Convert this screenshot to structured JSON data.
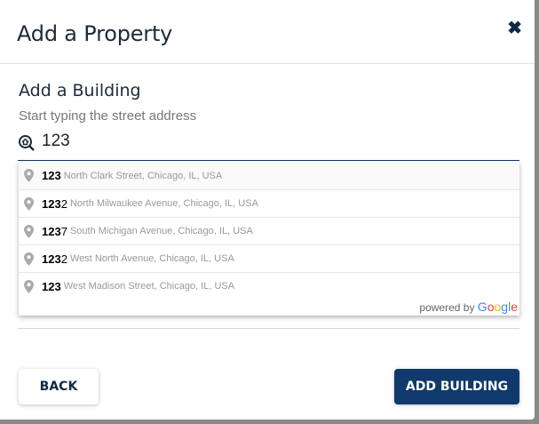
{
  "dialog": {
    "title": "Add a Property",
    "close_icon": "close-icon"
  },
  "form": {
    "subheading": "Add a Building",
    "helper": "Start typing the street address",
    "input_value": "123",
    "input_icon": "home-search-icon"
  },
  "suggestions": [
    {
      "match": "123",
      "rest_num": "",
      "address": "North Clark Street, Chicago, IL, USA"
    },
    {
      "match": "123",
      "rest_num": "2",
      "address": "North Milwaukee Avenue, Chicago, IL, USA"
    },
    {
      "match": "123",
      "rest_num": "7",
      "address": "South Michigan Avenue, Chicago, IL, USA"
    },
    {
      "match": "123",
      "rest_num": "2",
      "address": "West North Avenue, Chicago, IL, USA"
    },
    {
      "match": "123",
      "rest_num": "",
      "address": "West Madison Street, Chicago, IL, USA"
    }
  ],
  "attribution": {
    "prefix": "powered by",
    "brand": "Google",
    "brand_colors": [
      "#4285F4",
      "#EA4335",
      "#FBBC05",
      "#4285F4",
      "#34A853",
      "#EA4335"
    ]
  },
  "buttons": {
    "back": "BACK",
    "add": "ADD BUILDING"
  },
  "colors": {
    "primary": "#0f3a6b"
  }
}
